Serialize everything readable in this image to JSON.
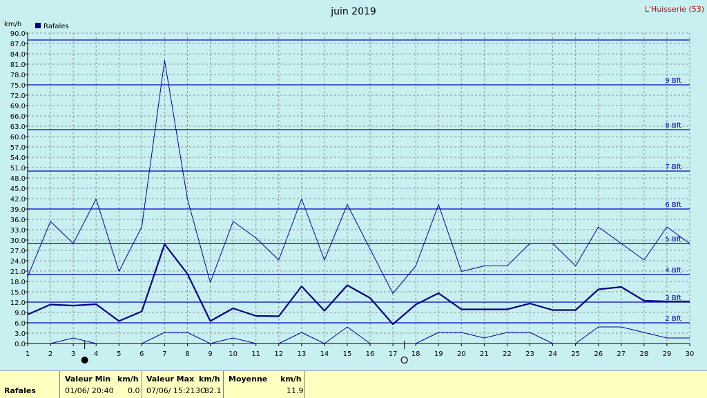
{
  "chart_data": {
    "type": "line",
    "title": "juin 2019",
    "station": "L'Huisserie (53)",
    "ylabel": "km/h",
    "ylim": [
      0,
      90
    ],
    "ytick_step": 3,
    "xlim": [
      1,
      30
    ],
    "x": [
      1,
      2,
      3,
      4,
      5,
      6,
      7,
      8,
      9,
      10,
      11,
      12,
      13,
      14,
      15,
      16,
      17,
      18,
      19,
      20,
      21,
      22,
      23,
      24,
      25,
      26,
      27,
      28,
      29,
      30
    ],
    "grid": true,
    "legend": [
      {
        "name": "Rafales",
        "color": "#000080"
      }
    ],
    "series": [
      {
        "name": "Rafales max",
        "color": "#0000a0",
        "width": 1,
        "values": [
          19.3,
          35.4,
          29.0,
          41.9,
          20.9,
          33.8,
          82.1,
          41.9,
          17.7,
          35.4,
          30.6,
          24.2,
          41.9,
          24.2,
          40.3,
          27.4,
          14.5,
          22.5,
          40.3,
          20.9,
          22.5,
          22.5,
          29.0,
          29.0,
          22.5,
          33.8,
          29.0,
          24.2,
          33.8,
          29.0
        ]
      },
      {
        "name": "Rafales moyenne",
        "color": "#000080",
        "width": 2.2,
        "values": [
          8.4,
          11.3,
          11.0,
          11.4,
          6.5,
          9.3,
          28.8,
          20.2,
          6.5,
          10.2,
          8.0,
          7.9,
          16.6,
          9.5,
          16.9,
          13.2,
          5.6,
          11.3,
          14.6,
          9.9,
          9.9,
          9.9,
          11.6,
          9.7,
          9.7,
          15.7,
          16.4,
          12.4,
          12.2,
          12.2
        ]
      },
      {
        "name": "Rafales min",
        "color": "#0000a0",
        "width": 1,
        "values": [
          null,
          0.0,
          1.6,
          0.0,
          null,
          0.0,
          3.2,
          3.2,
          0.0,
          1.6,
          0.0,
          0.0,
          3.2,
          0.0,
          4.8,
          0.0,
          null,
          0.0,
          3.2,
          3.2,
          1.6,
          3.2,
          3.2,
          0.0,
          0.0,
          4.8,
          4.8,
          3.2,
          1.6,
          1.6
        ]
      }
    ],
    "beaufort": [
      {
        "label": "2 Bft",
        "value": 6
      },
      {
        "label": "3 Bft",
        "value": 12
      },
      {
        "label": "4 Bft",
        "value": 20
      },
      {
        "label": "5 Bft",
        "value": 29
      },
      {
        "label": "6 Bft",
        "value": 39
      },
      {
        "label": "7 Bft",
        "value": 50
      },
      {
        "label": "8 Bft",
        "value": 62
      },
      {
        "label": "9 Bft",
        "value": 75
      },
      {
        "label": "",
        "value": 88
      }
    ],
    "moon_phases": [
      {
        "day": 3.5,
        "phase": "new"
      },
      {
        "day": 17.5,
        "phase": "full"
      }
    ]
  },
  "footer": {
    "row_label": "Rafales",
    "min_header": "Valeur Min",
    "min_unit": "km/h",
    "min_datetime": "01/06/  20:40",
    "min_value": "0.0",
    "max_header": "Valeur Max",
    "max_unit": "km/h",
    "max_datetime": "07/06/  15:21",
    "max_extra": "3O",
    "max_value": "82.1",
    "avg_header": "Moyenne",
    "avg_unit": "km/h",
    "avg_value": "11.9"
  }
}
